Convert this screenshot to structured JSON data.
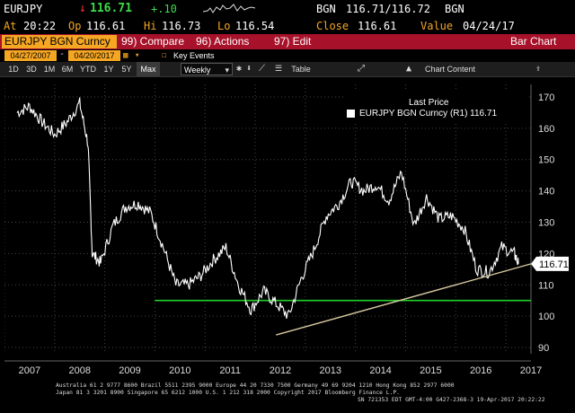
{
  "quote": {
    "ticker": "EURJPY",
    "arrow": "↓",
    "price": "116.71",
    "change": "+.10",
    "source": "BGN",
    "bidask": "116.71/116.72",
    "source2": "BGN",
    "time_label": "At",
    "time": "20:22",
    "open_label": "Op",
    "open": "116.61",
    "high_label": "Hi",
    "high": "116.73",
    "low_label": "Lo",
    "low": "116.54",
    "close_label": "Close",
    "close": "116.61",
    "value_label": "Value",
    "value_date": "04/24/17"
  },
  "menubar": {
    "security": "EURJPY BGN Curncy",
    "compare": "99) Compare",
    "actions": "96) Actions",
    "edit": "97) Edit",
    "view": "Bar Chart"
  },
  "daterange": {
    "start": "04/27/2007",
    "separator": "-",
    "end": "04/20/2017",
    "key_events": "Key Events"
  },
  "toolbar": {
    "ranges": [
      "1D",
      "3D",
      "1M",
      "6M",
      "YTD",
      "1Y",
      "5Y",
      "Max"
    ],
    "selected_range": "Max",
    "frequency": "Weekly",
    "table": "Table",
    "chart_content": "Chart Content"
  },
  "legend": {
    "title": "Last Price",
    "entry": "EURJPY BGN Curncy  (R1) 116.71"
  },
  "chart_data": {
    "type": "line",
    "x": [
      "2007-04",
      "2007-07",
      "2007-10",
      "2008-01",
      "2008-04",
      "2008-07",
      "2008-09",
      "2008-10",
      "2008-12",
      "2009-03",
      "2009-06",
      "2009-09",
      "2009-12",
      "2010-03",
      "2010-06",
      "2010-09",
      "2010-12",
      "2011-03",
      "2011-06",
      "2011-09",
      "2011-12",
      "2012-03",
      "2012-06",
      "2012-09",
      "2012-12",
      "2013-03",
      "2013-06",
      "2013-09",
      "2013-12",
      "2014-03",
      "2014-06",
      "2014-09",
      "2014-12",
      "2015-03",
      "2015-06",
      "2015-09",
      "2015-12",
      "2016-03",
      "2016-06",
      "2016-09",
      "2016-12",
      "2017-03",
      "2017-04"
    ],
    "y": [
      165,
      167,
      162,
      158,
      162,
      168,
      155,
      120,
      117,
      129,
      135,
      136,
      133,
      122,
      110,
      110,
      113,
      118,
      122,
      110,
      102,
      108,
      104,
      100,
      112,
      121,
      132,
      136,
      143,
      140,
      142,
      137,
      146,
      129,
      138,
      131,
      132,
      128,
      115,
      114,
      122,
      120,
      116.71
    ],
    "series_name": "EURJPY BGN Curncy",
    "last_value": "116.71",
    "xlabels": [
      "2007",
      "2008",
      "2009",
      "2010",
      "2011",
      "2012",
      "2013",
      "2014",
      "2015",
      "2016",
      "2017"
    ],
    "yticks": [
      "170",
      "160",
      "150",
      "140",
      "130",
      "120",
      "110",
      "100",
      "90"
    ],
    "ylim": [
      88,
      174
    ],
    "hline": 105,
    "trendline": {
      "x1": "2012-06",
      "y1": 94,
      "x2": "2017-04",
      "y2": 116.7
    },
    "colors": {
      "series": "#ffffff",
      "hline": "#22d02a",
      "trendline": "#d8c9a0",
      "last_tag": "#ffffff"
    }
  },
  "footer": {
    "line1": "Australia 61 2 9777 8600 Brazil 5511 2395 9000 Europe 44 20 7330 7500 Germany 49 69 9204 1210 Hong Kong 852 2977 6000",
    "line2": "Japan 81 3 3201 8900          Singapore 65 6212 1000          U.S. 1 212 318 2000          Copyright 2017 Bloomberg Finance L.P.",
    "line3": "SN 721353 EDT  GMT-4:00 G427-2368-3 19-Apr-2017 20:22:22"
  }
}
